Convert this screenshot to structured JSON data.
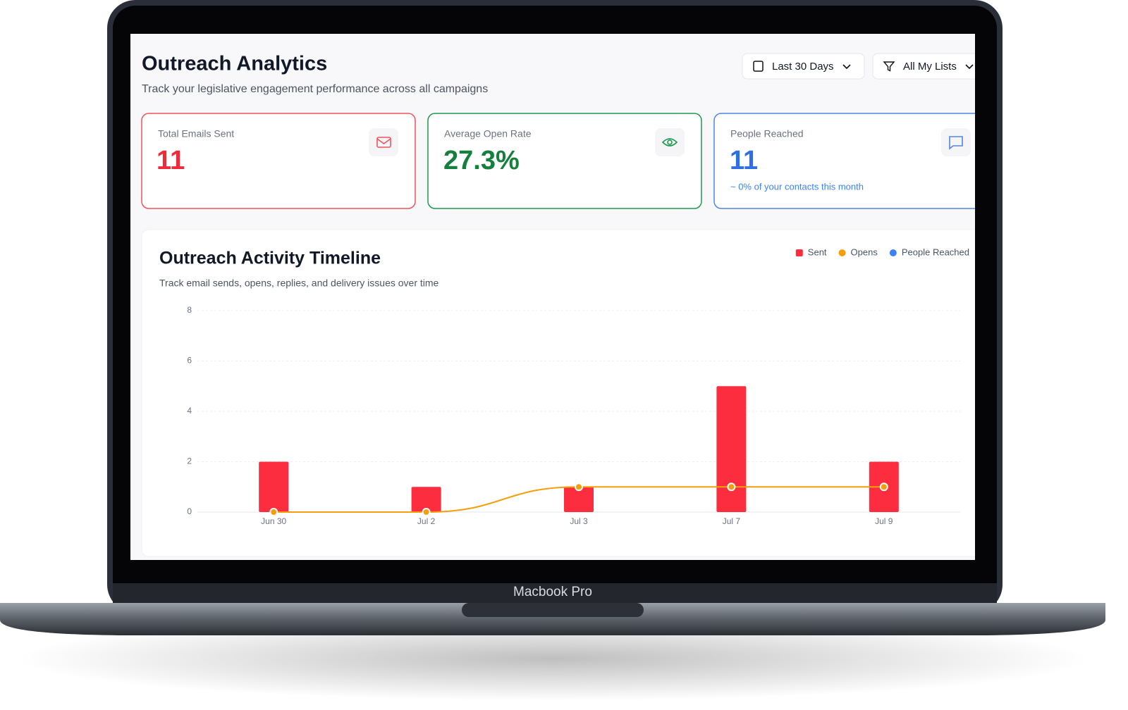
{
  "header": {
    "title": "Outreach Analytics",
    "subtitle": "Track your legislative engagement performance across all campaigns"
  },
  "filters": [
    "Last 30 Days",
    "All My Lists"
  ],
  "cards": [
    {
      "label": "Total Emails Sent",
      "value": "11"
    },
    {
      "label": "Average Open Rate",
      "value": "27.3%"
    },
    {
      "label": "People Reached",
      "value": "11",
      "note": "~ 0% of your contacts this month"
    }
  ],
  "chart_data": {
    "type": "bar",
    "title": "Outreach Activity Timeline",
    "subtitle": "Track email sends, opens, replies, and delivery issues over time",
    "categories": [
      "Jun 30",
      "Jul 2",
      "Jul 3",
      "Jul 7",
      "Jul 9"
    ],
    "series": [
      {
        "name": "Sent",
        "color": "#fb2d3e",
        "values": [
          2,
          1,
          1,
          5,
          2
        ]
      },
      {
        "name": "Opens",
        "color": "#f59e0b",
        "values": [
          0,
          0,
          1,
          1,
          1
        ]
      },
      {
        "name": "People Reached",
        "color": "#3b82f6",
        "values": [
          null,
          null,
          null,
          null,
          null
        ]
      }
    ],
    "ylim": [
      0,
      8
    ],
    "yticks": [
      0,
      2,
      4,
      6,
      8
    ],
    "grid": true,
    "legend": "top-right"
  },
  "device": {
    "label": "Macbook Pro"
  }
}
